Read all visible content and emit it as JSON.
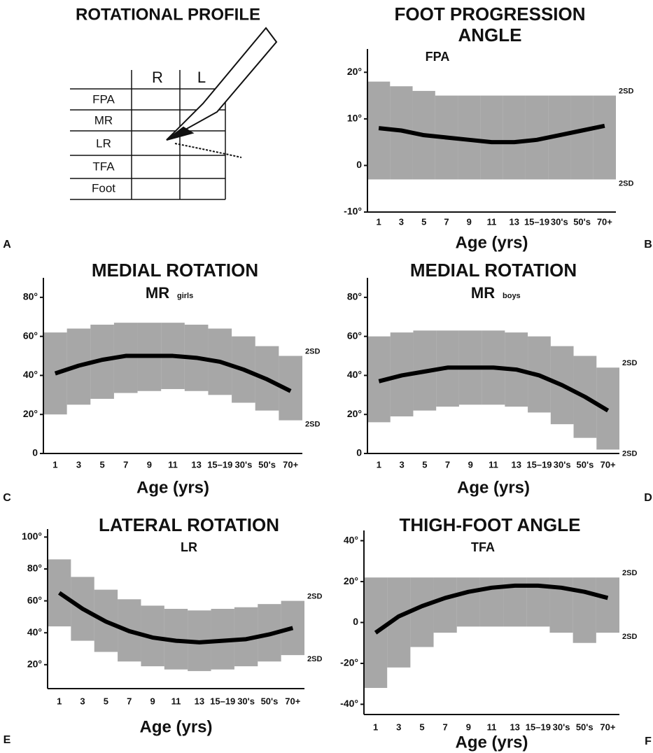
{
  "panel_labels": [
    "A",
    "B",
    "C",
    "D",
    "E",
    "F"
  ],
  "profile": {
    "title": "ROTATIONAL PROFILE",
    "columns": [
      "R",
      "L"
    ],
    "rows": [
      "FPA",
      "MR",
      "LR",
      "TFA",
      "Foot"
    ]
  },
  "chart_data": [
    {
      "type": "band-line",
      "title": [
        "FOOT PROGRESSION",
        "ANGLE"
      ],
      "subtitle": "FPA",
      "x_label": "Age (yrs)",
      "categories": [
        "1",
        "3",
        "5",
        "7",
        "9",
        "11",
        "13",
        "15–19",
        "30's",
        "50's",
        "70+"
      ],
      "mean": [
        8,
        7.5,
        6.5,
        6,
        5.5,
        5,
        5,
        5.5,
        6.5,
        7.5,
        8.5
      ],
      "upper_2sd": [
        18,
        17,
        16,
        15,
        15,
        15,
        15,
        15,
        15,
        15,
        15
      ],
      "lower_2sd": [
        -3,
        -3,
        -3,
        -3,
        -3,
        -3,
        -3,
        -3,
        -3,
        -3,
        -3
      ],
      "annotations": [
        "2SD",
        "2SD"
      ],
      "ylim": [
        -10,
        25
      ],
      "yticks": [
        {
          "value": -10,
          "label": "-10°"
        },
        {
          "value": 0,
          "label": "0"
        },
        {
          "value": 10,
          "label": "10°"
        },
        {
          "value": 20,
          "label": "20°"
        }
      ]
    },
    {
      "type": "band-line",
      "title": [
        "MEDIAL ROTATION"
      ],
      "subtitle": "MR",
      "subtitle_note": "girls",
      "x_label": "Age (yrs)",
      "categories": [
        "1",
        "3",
        "5",
        "7",
        "9",
        "11",
        "13",
        "15–19",
        "30's",
        "50's",
        "70+"
      ],
      "mean": [
        41,
        45,
        48,
        50,
        50,
        50,
        49,
        47,
        43,
        38,
        32
      ],
      "upper_2sd": [
        62,
        64,
        66,
        67,
        67,
        67,
        66,
        64,
        60,
        55,
        50
      ],
      "lower_2sd": [
        20,
        25,
        28,
        31,
        32,
        33,
        32,
        30,
        26,
        22,
        17
      ],
      "annotations": [
        "2SD",
        "2SD"
      ],
      "ylim": [
        0,
        90
      ],
      "yticks": [
        {
          "value": 0,
          "label": "0"
        },
        {
          "value": 20,
          "label": "20°"
        },
        {
          "value": 40,
          "label": "40°"
        },
        {
          "value": 60,
          "label": "60°"
        },
        {
          "value": 80,
          "label": "80°"
        }
      ]
    },
    {
      "type": "band-line",
      "title": [
        "MEDIAL ROTATION"
      ],
      "subtitle": "MR",
      "subtitle_note": "boys",
      "x_label": "Age (yrs)",
      "categories": [
        "1",
        "3",
        "5",
        "7",
        "9",
        "11",
        "13",
        "15–19",
        "30's",
        "50's",
        "70+"
      ],
      "mean": [
        37,
        40,
        42,
        44,
        44,
        44,
        43,
        40,
        35,
        29,
        22
      ],
      "upper_2sd": [
        60,
        62,
        63,
        63,
        63,
        63,
        62,
        60,
        55,
        50,
        44
      ],
      "lower_2sd": [
        16,
        19,
        22,
        24,
        25,
        25,
        24,
        21,
        15,
        8,
        2
      ],
      "annotations": [
        "2SD",
        "2SD"
      ],
      "ylim": [
        0,
        90
      ],
      "yticks": [
        {
          "value": 0,
          "label": "0"
        },
        {
          "value": 20,
          "label": "20°"
        },
        {
          "value": 40,
          "label": "40°"
        },
        {
          "value": 60,
          "label": "60°"
        },
        {
          "value": 80,
          "label": "80°"
        }
      ]
    },
    {
      "type": "band-line",
      "title": [
        "LATERAL ROTATION"
      ],
      "subtitle": "LR",
      "x_label": "Age  (yrs)",
      "categories": [
        "1",
        "3",
        "5",
        "7",
        "9",
        "11",
        "13",
        "15–19",
        "30's",
        "50's",
        "70+"
      ],
      "mean": [
        65,
        55,
        47,
        41,
        37,
        35,
        34,
        35,
        36,
        39,
        43
      ],
      "upper_2sd": [
        86,
        75,
        67,
        61,
        57,
        55,
        54,
        55,
        56,
        58,
        60
      ],
      "lower_2sd": [
        44,
        35,
        28,
        22,
        19,
        17,
        16,
        17,
        19,
        22,
        26
      ],
      "annotations": [
        "2SD",
        "2SD"
      ],
      "ylim": [
        5,
        105
      ],
      "yticks": [
        {
          "value": 20,
          "label": "20°"
        },
        {
          "value": 40,
          "label": "40°"
        },
        {
          "value": 60,
          "label": "60°"
        },
        {
          "value": 80,
          "label": "80°"
        },
        {
          "value": 100,
          "label": "100°"
        }
      ]
    },
    {
      "type": "band-line",
      "title": [
        "THIGH-FOOT ANGLE"
      ],
      "subtitle": "TFA",
      "x_label": "Age (yrs)",
      "categories": [
        "1",
        "3",
        "5",
        "7",
        "9",
        "11",
        "13",
        "15–19",
        "30's",
        "50's",
        "70+"
      ],
      "mean": [
        -5,
        3,
        8,
        12,
        15,
        17,
        18,
        18,
        17,
        15,
        12
      ],
      "upper_2sd": [
        22,
        22,
        22,
        22,
        22,
        22,
        22,
        22,
        22,
        22,
        22
      ],
      "lower_2sd": [
        -32,
        -22,
        -12,
        -5,
        -2,
        -2,
        -2,
        -2,
        -5,
        -10,
        -5
      ],
      "annotations": [
        "2SD",
        "2SD"
      ],
      "ylim": [
        -45,
        45
      ],
      "yticks": [
        {
          "value": -40,
          "label": "-40°"
        },
        {
          "value": -20,
          "label": "-20°"
        },
        {
          "value": 0,
          "label": "0"
        },
        {
          "value": 20,
          "label": "20°"
        },
        {
          "value": 40,
          "label": "40°"
        }
      ]
    }
  ]
}
